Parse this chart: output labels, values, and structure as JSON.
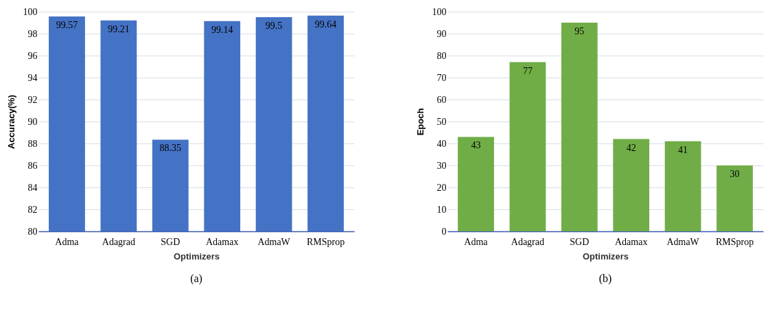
{
  "chart_data": [
    {
      "type": "bar",
      "xlabel": "Optimizers",
      "ylabel": "Accuracy(%)",
      "categories": [
        "Adma",
        "Adagrad",
        "SGD",
        "Adamax",
        "AdmaW",
        "RMSprop"
      ],
      "values": [
        99.57,
        99.21,
        88.35,
        99.14,
        99.5,
        99.64
      ],
      "color": "#4472c4",
      "ylim": [
        80,
        100
      ],
      "yticks": [
        80,
        82,
        84,
        86,
        88,
        90,
        92,
        94,
        96,
        98,
        100
      ],
      "grid": "y",
      "data_labels": true,
      "annotations": [
        "(a)"
      ]
    },
    {
      "type": "bar",
      "xlabel": "Optimizers",
      "ylabel": "Epoch",
      "categories": [
        "Adma",
        "Adagrad",
        "SGD",
        "Adamax",
        "AdmaW",
        "RMSprop"
      ],
      "values": [
        43,
        77,
        95,
        42,
        41,
        30
      ],
      "color": "#70ad47",
      "ylim": [
        0,
        100
      ],
      "yticks": [
        0,
        10,
        20,
        30,
        40,
        50,
        60,
        70,
        80,
        90,
        100
      ],
      "grid": "y",
      "data_labels": true,
      "annotations": [
        "(b)"
      ]
    }
  ]
}
